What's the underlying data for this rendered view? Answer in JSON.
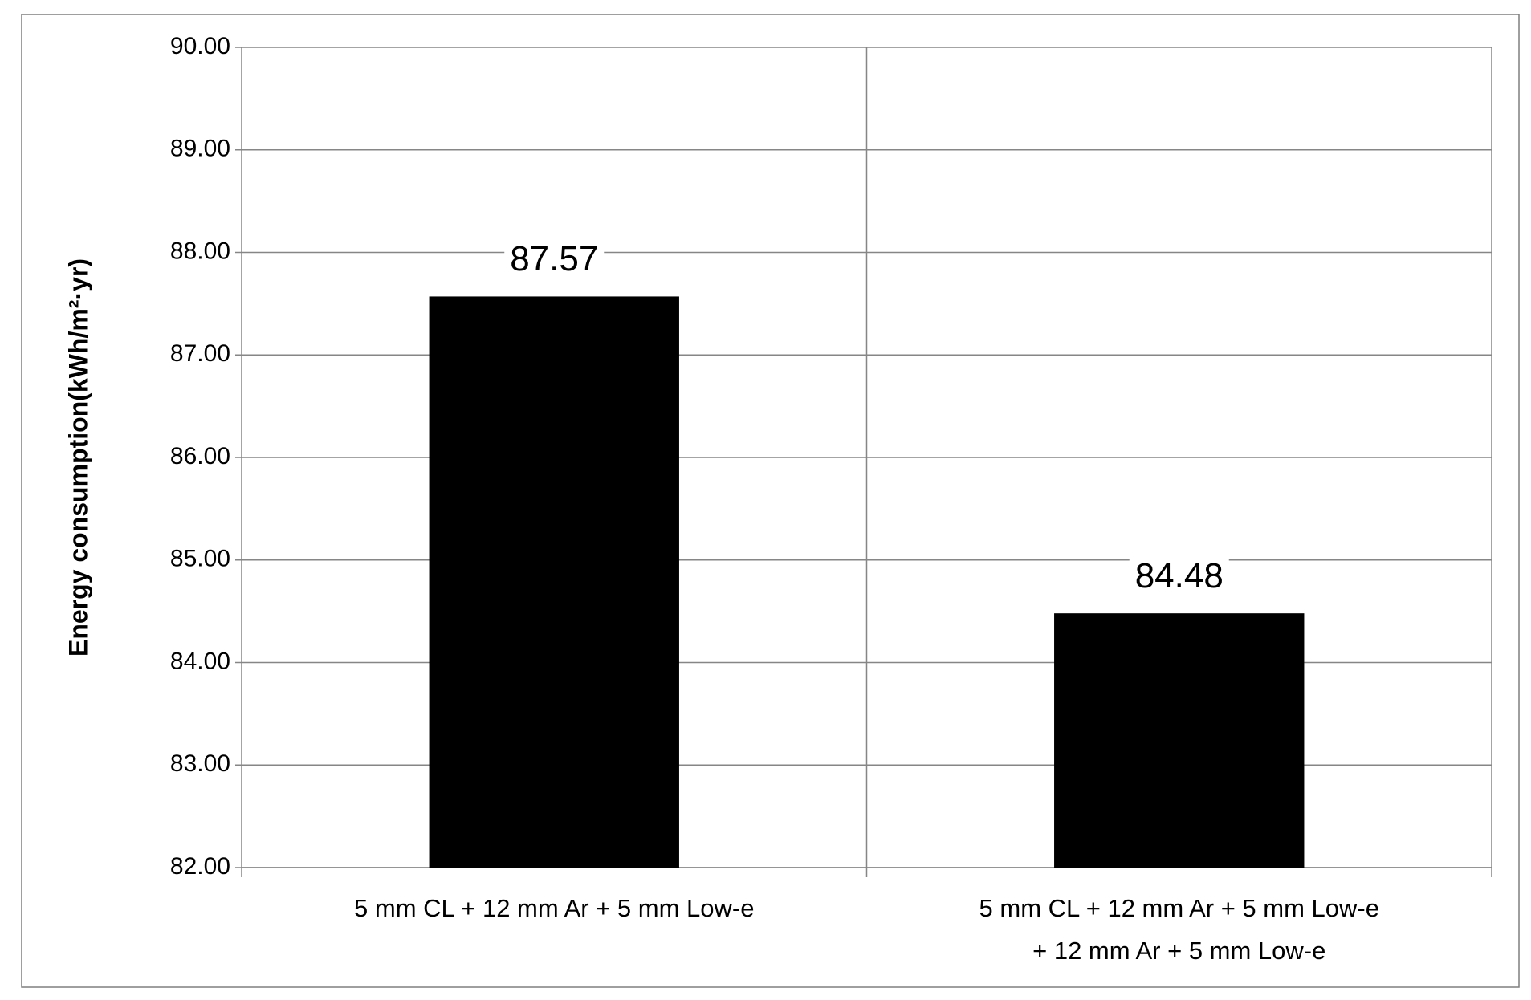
{
  "chart_data": {
    "type": "bar",
    "y_label": "Energy consumption(kWh/m²·yr)",
    "categories": [
      [
        "5 mm CL + 12 mm Ar + 5 mm Low-e"
      ],
      [
        "5 mm CL + 12 mm Ar + 5 mm Low-e",
        "+ 12 mm Ar + 5 mm Low-e"
      ]
    ],
    "values": [
      87.57,
      84.48
    ],
    "color": "#000000",
    "ylim": [
      82,
      90
    ],
    "yticks": [
      {
        "value": 82,
        "label": "82.00"
      },
      {
        "value": 83,
        "label": "83.00"
      },
      {
        "value": 84,
        "label": "84.00"
      },
      {
        "value": 85,
        "label": "85.00"
      },
      {
        "value": 86,
        "label": "86.00"
      },
      {
        "value": 87,
        "label": "87.00"
      },
      {
        "value": 88,
        "label": "88.00"
      },
      {
        "value": 89,
        "label": "89.00"
      },
      {
        "value": 90,
        "label": "90.00"
      }
    ],
    "grid": true
  }
}
